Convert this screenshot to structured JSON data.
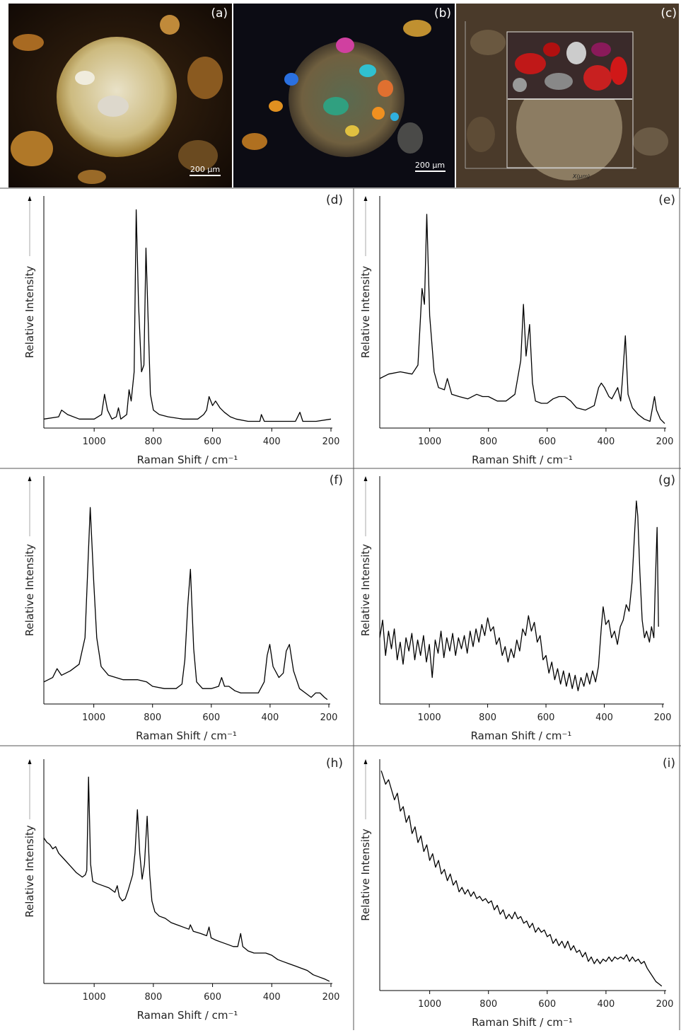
{
  "images": [
    {
      "label": "(a)",
      "scale": "200 µm"
    },
    {
      "label": "(b)",
      "scale": "200 µm"
    },
    {
      "label": "(c)",
      "axis": "X(µm)"
    }
  ],
  "chart_data": [
    {
      "type": "line",
      "panel": "(d)",
      "xlabel": "Raman Shift / cm⁻¹",
      "ylabel": "Relative Intensity",
      "color": "#000000",
      "xlim": [
        1170,
        200
      ],
      "ylim": [
        0,
        100
      ],
      "xticks": [
        1000,
        800,
        600,
        400,
        200
      ],
      "x": [
        1170,
        1120,
        1110,
        1090,
        1050,
        1000,
        975,
        965,
        955,
        940,
        925,
        918,
        910,
        890,
        882,
        875,
        865,
        858,
        850,
        840,
        832,
        825,
        818,
        810,
        800,
        780,
        750,
        700,
        650,
        630,
        620,
        612,
        600,
        590,
        575,
        560,
        540,
        520,
        480,
        440,
        435,
        425,
        380,
        320,
        305,
        295,
        250,
        200
      ],
      "values": [
        4,
        5,
        8,
        6,
        4,
        4,
        6,
        15,
        8,
        4,
        5,
        9,
        4,
        6,
        17,
        12,
        25,
        97,
        55,
        25,
        28,
        80,
        50,
        15,
        8,
        6,
        5,
        4,
        4,
        6,
        8,
        14,
        10,
        12,
        9,
        7,
        5,
        4,
        3,
        3,
        6,
        3,
        3,
        3,
        7,
        3,
        3,
        4
      ]
    },
    {
      "type": "line",
      "panel": "(e)",
      "xlabel": "Raman Shift / cm⁻¹",
      "ylabel": "Relative Intensity",
      "color": "#000000",
      "xlim": [
        1170,
        200
      ],
      "ylim": [
        0,
        100
      ],
      "xticks": [
        1000,
        800,
        600,
        400,
        200
      ],
      "x": [
        1170,
        1140,
        1100,
        1060,
        1040,
        1026,
        1018,
        1010,
        1000,
        985,
        970,
        950,
        940,
        925,
        900,
        870,
        840,
        820,
        800,
        770,
        740,
        710,
        690,
        681,
        672,
        660,
        650,
        640,
        620,
        600,
        580,
        560,
        540,
        520,
        500,
        470,
        440,
        425,
        416,
        405,
        390,
        380,
        360,
        350,
        345,
        334,
        325,
        310,
        290,
        270,
        250,
        235,
        228,
        215,
        200
      ],
      "values": [
        22,
        24,
        25,
        24,
        28,
        62,
        55,
        95,
        50,
        25,
        18,
        17,
        22,
        15,
        14,
        13,
        15,
        14,
        14,
        12,
        12,
        15,
        30,
        55,
        32,
        46,
        20,
        12,
        11,
        11,
        13,
        14,
        14,
        12,
        9,
        8,
        10,
        18,
        20,
        18,
        14,
        13,
        18,
        12,
        20,
        41,
        15,
        9,
        6,
        4,
        3,
        14,
        8,
        4,
        2
      ]
    },
    {
      "type": "line",
      "panel": "(f)",
      "xlabel": "Raman Shift / cm⁻¹",
      "ylabel": "Relative Intensity",
      "color": "#000000",
      "xlim": [
        1170,
        200
      ],
      "ylim": [
        0,
        100
      ],
      "xticks": [
        1000,
        800,
        600,
        400,
        200
      ],
      "x": [
        1170,
        1140,
        1125,
        1110,
        1080,
        1050,
        1030,
        1018,
        1012,
        1000,
        990,
        975,
        950,
        900,
        850,
        820,
        800,
        760,
        720,
        700,
        690,
        680,
        671,
        660,
        650,
        630,
        600,
        575,
        565,
        555,
        540,
        520,
        500,
        470,
        440,
        420,
        410,
        401,
        390,
        370,
        355,
        345,
        334,
        320,
        300,
        280,
        260,
        245,
        230,
        215,
        205
      ],
      "values": [
        10,
        12,
        16,
        13,
        15,
        18,
        30,
        70,
        89,
        55,
        30,
        17,
        13,
        11,
        11,
        10,
        8,
        7,
        7,
        9,
        20,
        45,
        61,
        25,
        10,
        7,
        7,
        8,
        12,
        8,
        8,
        6,
        5,
        5,
        5,
        10,
        22,
        27,
        17,
        12,
        14,
        24,
        27,
        15,
        7,
        5,
        3,
        5,
        5,
        3,
        2
      ]
    },
    {
      "type": "line",
      "panel": "(g)",
      "xlabel": "Raman Shift / cm⁻¹",
      "ylabel": "Relative Intensity",
      "color": "#000000",
      "xlim": [
        1170,
        200
      ],
      "ylim": [
        0,
        100
      ],
      "xticks": [
        1000,
        800,
        600,
        400,
        200
      ],
      "x": [
        1170,
        1160,
        1150,
        1140,
        1130,
        1120,
        1110,
        1100,
        1090,
        1080,
        1070,
        1060,
        1050,
        1040,
        1030,
        1020,
        1010,
        1000,
        990,
        980,
        970,
        960,
        950,
        940,
        930,
        920,
        910,
        900,
        890,
        880,
        870,
        860,
        850,
        840,
        830,
        820,
        810,
        800,
        790,
        780,
        770,
        760,
        750,
        740,
        730,
        720,
        710,
        700,
        690,
        680,
        670,
        660,
        650,
        640,
        630,
        620,
        610,
        600,
        590,
        580,
        570,
        560,
        550,
        540,
        530,
        520,
        510,
        500,
        490,
        480,
        470,
        460,
        450,
        440,
        430,
        420,
        410,
        404,
        395,
        385,
        375,
        365,
        355,
        345,
        335,
        325,
        315,
        305,
        295,
        290,
        285,
        278,
        270,
        262,
        255,
        245,
        238,
        230,
        225,
        219,
        214
      ],
      "values": [
        30,
        38,
        22,
        33,
        25,
        34,
        20,
        28,
        18,
        30,
        24,
        32,
        20,
        29,
        22,
        31,
        19,
        27,
        12,
        29,
        23,
        33,
        21,
        30,
        24,
        32,
        22,
        30,
        25,
        31,
        23,
        33,
        26,
        34,
        28,
        36,
        31,
        39,
        33,
        35,
        27,
        30,
        22,
        26,
        19,
        25,
        21,
        29,
        24,
        34,
        31,
        40,
        33,
        37,
        28,
        31,
        20,
        22,
        14,
        19,
        11,
        16,
        9,
        15,
        8,
        14,
        7,
        13,
        6,
        12,
        8,
        14,
        9,
        15,
        10,
        17,
        35,
        44,
        36,
        38,
        30,
        33,
        27,
        35,
        38,
        45,
        42,
        55,
        80,
        92,
        85,
        60,
        38,
        30,
        33,
        28,
        35,
        30,
        55,
        80,
        35
      ]
    },
    {
      "type": "line",
      "panel": "(h)",
      "xlabel": "Raman Shift / cm⁻¹",
      "ylabel": "Relative Intensity",
      "color": "#000000",
      "xlim": [
        1170,
        200
      ],
      "ylim": [
        0,
        100
      ],
      "xticks": [
        1000,
        800,
        600,
        400,
        200
      ],
      "x": [
        1170,
        1160,
        1150,
        1140,
        1130,
        1120,
        1100,
        1080,
        1060,
        1040,
        1030,
        1025,
        1019,
        1012,
        1005,
        990,
        970,
        950,
        930,
        922,
        915,
        905,
        895,
        885,
        870,
        862,
        854,
        846,
        838,
        830,
        821,
        812,
        805,
        795,
        780,
        760,
        740,
        720,
        700,
        680,
        675,
        665,
        640,
        620,
        612,
        605,
        590,
        570,
        550,
        530,
        515,
        505,
        498,
        480,
        460,
        440,
        420,
        400,
        380,
        360,
        340,
        320,
        300,
        280,
        260,
        240,
        220,
        205
      ],
      "values": [
        67,
        65,
        64,
        62,
        63,
        60,
        57,
        54,
        51,
        49,
        50,
        52,
        95,
        55,
        47,
        46,
        45,
        44,
        42,
        45,
        40,
        38,
        39,
        43,
        50,
        60,
        80,
        60,
        48,
        55,
        77,
        50,
        38,
        33,
        31,
        30,
        28,
        27,
        26,
        25,
        27,
        24,
        23,
        22,
        26,
        21,
        20,
        19,
        18,
        17,
        17,
        23,
        17,
        15,
        14,
        14,
        14,
        13,
        11,
        10,
        9,
        8,
        7,
        6,
        4,
        3,
        2,
        1
      ]
    },
    {
      "type": "line",
      "panel": "(i)",
      "xlabel": "Raman Shift / cm⁻¹",
      "ylabel": "Relative Intensity",
      "color": "#000000",
      "xlim": [
        1170,
        200
      ],
      "ylim": [
        0,
        100
      ],
      "xticks": [
        1000,
        800,
        600,
        400,
        200
      ],
      "x": [
        1165,
        1150,
        1140,
        1120,
        1110,
        1100,
        1090,
        1080,
        1070,
        1060,
        1050,
        1040,
        1030,
        1020,
        1010,
        1000,
        990,
        980,
        970,
        960,
        950,
        940,
        930,
        920,
        910,
        900,
        890,
        880,
        870,
        860,
        850,
        840,
        830,
        820,
        810,
        800,
        790,
        780,
        770,
        760,
        750,
        740,
        730,
        720,
        710,
        700,
        690,
        680,
        670,
        660,
        650,
        640,
        630,
        620,
        610,
        600,
        590,
        580,
        570,
        560,
        550,
        540,
        530,
        520,
        510,
        500,
        490,
        480,
        470,
        460,
        450,
        440,
        430,
        420,
        410,
        400,
        390,
        380,
        370,
        360,
        350,
        340,
        330,
        320,
        310,
        300,
        290,
        280,
        270,
        260,
        250,
        240,
        230,
        220,
        210
      ],
      "values": [
        98,
        92,
        94,
        85,
        88,
        80,
        82,
        75,
        78,
        70,
        73,
        66,
        69,
        62,
        65,
        58,
        61,
        55,
        58,
        52,
        54,
        49,
        52,
        47,
        49,
        44,
        46,
        43,
        45,
        42,
        44,
        41,
        42,
        40,
        41,
        39,
        40,
        36,
        38,
        34,
        36,
        32,
        34,
        32,
        35,
        32,
        33,
        30,
        31,
        28,
        30,
        26,
        28,
        26,
        27,
        24,
        25,
        21,
        23,
        20,
        22,
        19,
        22,
        18,
        20,
        17,
        18,
        15,
        17,
        13,
        15,
        12,
        14,
        12,
        14,
        13,
        15,
        13,
        15,
        14,
        15,
        14,
        16,
        13,
        15,
        13,
        14,
        12,
        13,
        10,
        8,
        6,
        4,
        3,
        2
      ]
    }
  ]
}
